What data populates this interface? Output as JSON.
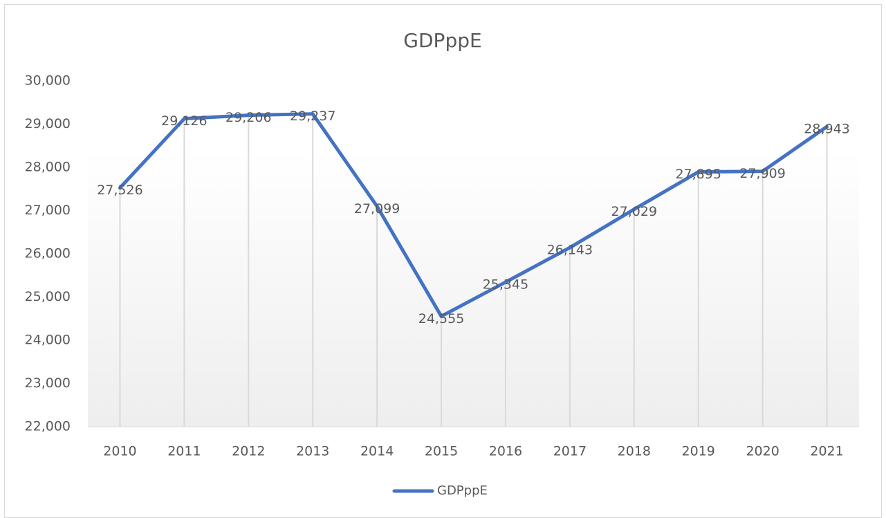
{
  "chart_data": {
    "type": "line",
    "title": "GDPppE",
    "categories": [
      "2010",
      "2011",
      "2012",
      "2013",
      "2014",
      "2015",
      "2016",
      "2017",
      "2018",
      "2019",
      "2020",
      "2021"
    ],
    "series": [
      {
        "name": "GDPppE",
        "color": "#4472c4",
        "values": [
          27526,
          29126,
          29206,
          29237,
          27099,
          24555,
          25345,
          26143,
          27029,
          27895,
          27909,
          28943
        ],
        "value_labels": [
          "27,526",
          "29,126",
          "29,206",
          "29,237",
          "27,099",
          "24,555",
          "25,345",
          "26,143",
          "27,029",
          "27,895",
          "27,909",
          "28,943"
        ]
      }
    ],
    "ylim": [
      22000,
      30000
    ],
    "yticks": [
      {
        "value": 22000,
        "label": "22,000"
      },
      {
        "value": 23000,
        "label": "23,000"
      },
      {
        "value": 24000,
        "label": "24,000"
      },
      {
        "value": 25000,
        "label": "25,000"
      },
      {
        "value": 26000,
        "label": "26,000"
      },
      {
        "value": 27000,
        "label": "27,000"
      },
      {
        "value": 28000,
        "label": "28,000"
      },
      {
        "value": 29000,
        "label": "29,000"
      },
      {
        "value": 30000,
        "label": "30,000"
      }
    ],
    "drop_lines": true,
    "legend": "bottom"
  }
}
